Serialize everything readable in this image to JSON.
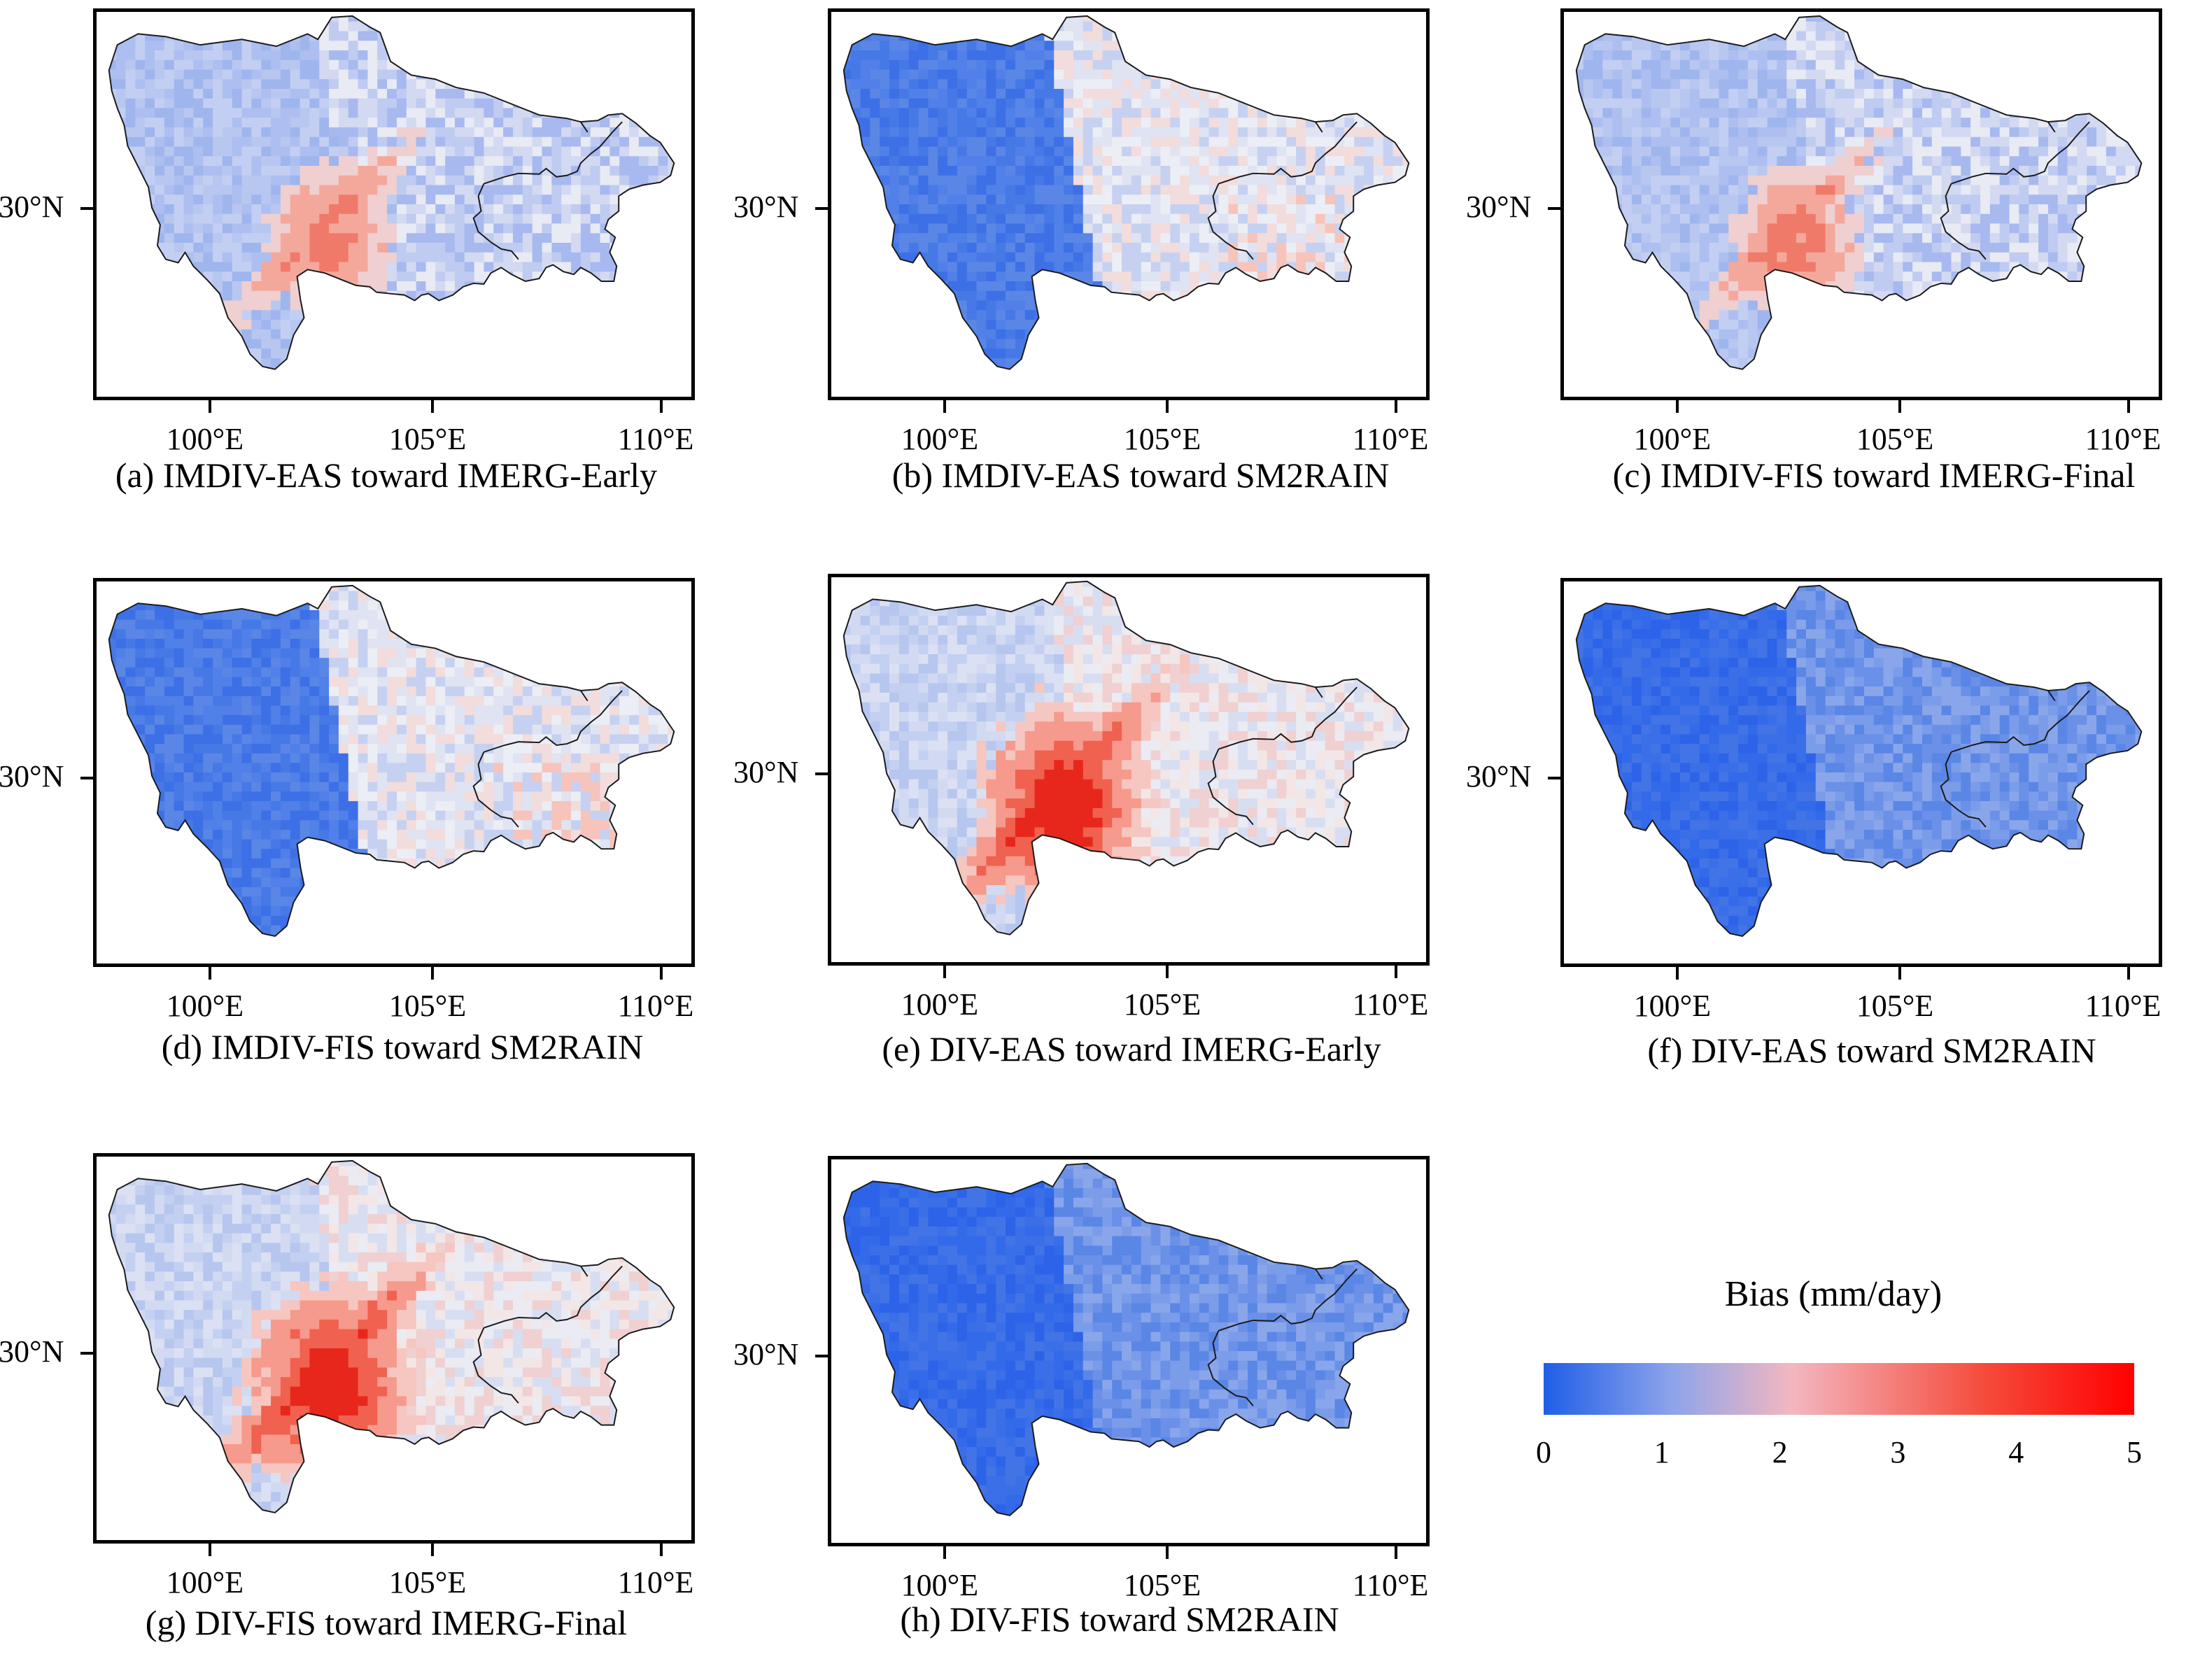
{
  "figure": {
    "panels": [
      {
        "id": "a",
        "caption": "(a) IMDIV-EAS toward IMERG-Early",
        "pattern": "light-blue-west-red-basin-rim",
        "ylabel": "30°N",
        "xlabels": [
          "100°E",
          "105°E",
          "110°E"
        ]
      },
      {
        "id": "b",
        "caption": "(b) IMDIV-EAS toward SM2RAIN",
        "pattern": "deep-blue-west-mixed-east",
        "ylabel": "30°N",
        "xlabels": [
          "100°E",
          "105°E",
          "110°E"
        ]
      },
      {
        "id": "c",
        "caption": "(c) IMDIV-FIS toward IMERG-Final",
        "pattern": "light-blue-west-red-basin-rim",
        "ylabel": "30°N",
        "xlabels": [
          "100°E",
          "105°E",
          "110°E"
        ]
      },
      {
        "id": "d",
        "caption": "(d) IMDIV-FIS toward SM2RAIN",
        "pattern": "deep-blue-west-mixed-east",
        "ylabel": "30°N",
        "xlabels": [
          "100°E",
          "105°E",
          "110°E"
        ]
      },
      {
        "id": "e",
        "caption": "(e) DIV-EAS toward IMERG-Early",
        "pattern": "strong-red-basin-rim",
        "ylabel": "30°N",
        "xlabels": [
          "100°E",
          "105°E",
          "110°E"
        ]
      },
      {
        "id": "f",
        "caption": "(f) DIV-EAS toward SM2RAIN",
        "pattern": "deep-blue-everywhere",
        "ylabel": "30°N",
        "xlabels": [
          "100°E",
          "105°E",
          "110°E"
        ]
      },
      {
        "id": "g",
        "caption": "(g) DIV-FIS toward IMERG-Final",
        "pattern": "strong-red-basin-rim",
        "ylabel": "30°N",
        "xlabels": [
          "100°E",
          "105°E",
          "110°E"
        ]
      },
      {
        "id": "h",
        "caption": "(h) DIV-FIS toward SM2RAIN",
        "pattern": "deep-blue-everywhere",
        "ylabel": "30°N",
        "xlabels": [
          "100°E",
          "105°E",
          "110°E"
        ]
      }
    ]
  },
  "legend": {
    "title": "Bias (mm/day)",
    "ticks": [
      "0",
      "1",
      "2",
      "3",
      "4",
      "5"
    ],
    "range": [
      0,
      5
    ],
    "colors": {
      "low": "#1f5ee8",
      "mid_low": "#8fa4ea",
      "mid": "#f3b7c0",
      "high": "#f54a3a",
      "max": "#ff0000"
    }
  },
  "colors": {
    "frame": "#000000",
    "outline": "#1a1a1a",
    "background": "#ffffff"
  }
}
